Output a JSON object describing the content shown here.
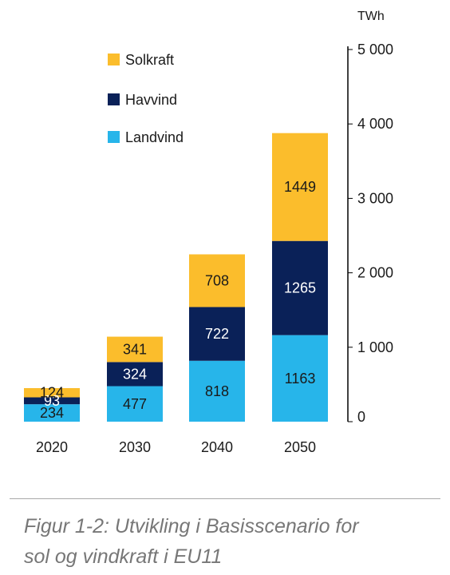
{
  "chart_data": {
    "type": "bar",
    "stacked": true,
    "categories": [
      "2020",
      "2030",
      "2040",
      "2050"
    ],
    "series": [
      {
        "name": "Landvind",
        "color": "#27b5ea",
        "values": [
          234,
          477,
          818,
          1163
        ]
      },
      {
        "name": "Havvind",
        "color": "#0a2158",
        "values": [
          93,
          324,
          722,
          1265
        ]
      },
      {
        "name": "Solkraft",
        "color": "#fbbd2c",
        "values": [
          124,
          341,
          708,
          1449
        ]
      }
    ],
    "unit": "TWh",
    "ylim": [
      0,
      5000
    ],
    "yticks": [
      0,
      1000,
      2000,
      3000,
      4000,
      5000
    ],
    "ytick_labels": [
      "0",
      "1 000",
      "2 000",
      "3 000",
      "4 000",
      "5 000"
    ],
    "y_axis_side": "right",
    "legend_position": "top-left",
    "legend_order": [
      "Solkraft",
      "Havvind",
      "Landvind"
    ],
    "grid": false
  },
  "caption": {
    "line1": "Figur 1-2: Utvikling i Basisscenario for",
    "line2": "sol og vindkraft i EU11"
  }
}
